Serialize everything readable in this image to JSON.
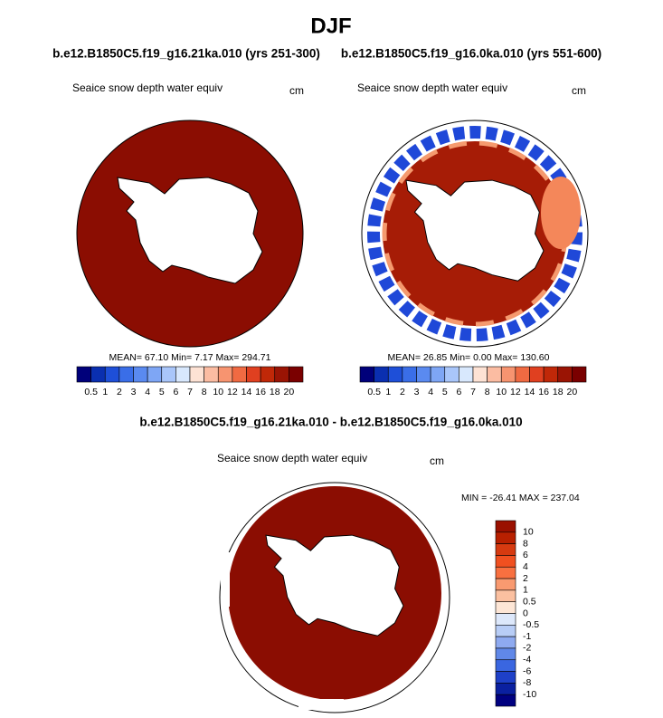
{
  "title": "DJF",
  "subtitle_left": "b.e12.B1850C5.f19_g16.21ka.010 (yrs 251-300)",
  "subtitle_right": "b.e12.B1850C5.f19_g16.0ka.010 (yrs 551-600)",
  "panels": [
    {
      "label": "Seaice snow depth water equiv",
      "units": "cm",
      "stats": "MEAN=  67.10  Min=   7.17  Max= 294.71"
    },
    {
      "label": "Seaice snow depth water equiv",
      "units": "cm",
      "stats": "MEAN=  26.85  Min=   0.00  Max= 130.60"
    }
  ],
  "colorbar": {
    "labels": [
      "0.5",
      "1",
      "2",
      "3",
      "4",
      "5",
      "6",
      "7",
      "8",
      "10",
      "12",
      "14",
      "16",
      "18",
      "20"
    ],
    "colors": [
      "#00007a",
      "#0a2fb0",
      "#1e4fd8",
      "#3a6ee8",
      "#5a8af0",
      "#7ea6f5",
      "#a9c6fa",
      "#d8e8fd",
      "#fde2d4",
      "#fbbca2",
      "#f79470",
      "#f06a42",
      "#e04020",
      "#c02808",
      "#9a1404",
      "#7a0000"
    ]
  },
  "diff_title": "b.e12.B1850C5.f19_g16.21ka.010 - b.e12.B1850C5.f19_g16.0ka.010",
  "diff_panel": {
    "label": "Seaice snow depth water equiv",
    "units": "cm",
    "stats": "MIN = -26.41 MAX = 237.04"
  },
  "diff_colorbar": {
    "labels": [
      "10",
      "8",
      "6",
      "4",
      "2",
      "1",
      "0.5",
      "0",
      "-0.5",
      "-1",
      "-2",
      "-4",
      "-6",
      "-8",
      "-10"
    ],
    "colors": [
      "#9a1000",
      "#b82000",
      "#d63a10",
      "#f05020",
      "#f87040",
      "#f99a70",
      "#fbc0a0",
      "#fde6d6",
      "#dde8fb",
      "#b8cdf6",
      "#8eaaf0",
      "#6088e8",
      "#3a66e0",
      "#1e40c8",
      "#0a20a0",
      "#000080"
    ]
  }
}
